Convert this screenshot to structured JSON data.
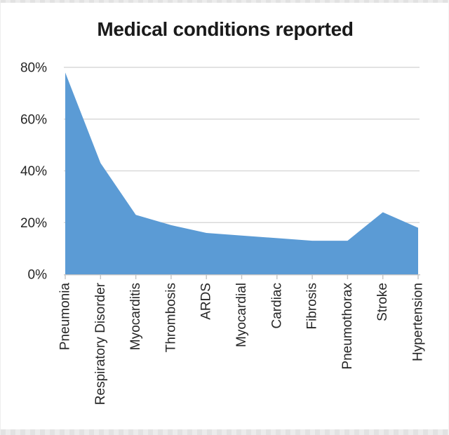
{
  "window": {
    "background": "#ffffff",
    "edge_strip_color": "#e2e2e2"
  },
  "chart_data": {
    "type": "area",
    "title": "Medical conditions reported",
    "categories": [
      "Pneumonia",
      "Respiratory Disorder",
      "Myocarditis",
      "Thrombosis",
      "ARDS",
      "Myocardial",
      "Cardiac",
      "Fibrosis",
      "Pneumothorax",
      "Stroke",
      "Hypertension"
    ],
    "values_percent": [
      78,
      43,
      23,
      19,
      16,
      15,
      14,
      13,
      13,
      24,
      18
    ],
    "xlabel": "",
    "ylabel": "",
    "ylim": [
      0,
      80
    ],
    "ytick_step": 20,
    "ytick_labels": [
      "0%",
      "20%",
      "40%",
      "60%",
      "80%"
    ],
    "grid": true,
    "legend": "none",
    "x_labels_rotation_deg": -90,
    "area_color": "#5b9bd5",
    "gridline_color": "#d9d9d9",
    "axis_color": "#c4c4c4",
    "label_color": "#262626",
    "title_color": "#1a1a1a"
  }
}
